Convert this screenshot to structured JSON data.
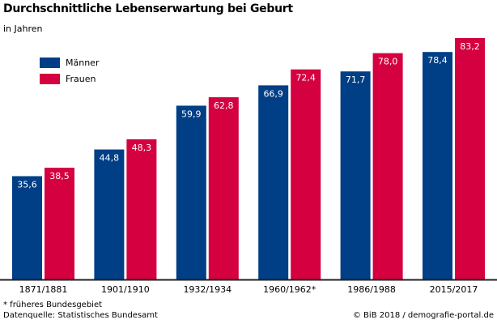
{
  "chart_data": {
    "type": "bar",
    "title": "Durchschnittliche Lebenserwartung bei Geburt",
    "subtitle": "in Jahren",
    "categories": [
      "1871/1881",
      "1901/1910",
      "1932/1934",
      "1960/1962*",
      "1986/1988",
      "2015/2017"
    ],
    "series": [
      {
        "name": "Männer",
        "color": "#003e86",
        "values": [
          35.6,
          44.8,
          59.9,
          66.9,
          71.7,
          78.4
        ],
        "labels": [
          "35,6",
          "44,8",
          "59,9",
          "66,9",
          "71,7",
          "78,4"
        ]
      },
      {
        "name": "Frauen",
        "color": "#d5003f",
        "values": [
          38.5,
          48.3,
          62.8,
          72.4,
          78.0,
          83.2
        ],
        "labels": [
          "38,5",
          "48,3",
          "62,8",
          "72,4",
          "78,0",
          "83,2"
        ]
      }
    ],
    "ylim": [
      0,
      83.2
    ],
    "grid": false,
    "legend_position": "top-left"
  },
  "footer": {
    "note": "* früheres Bundesgebiet",
    "source": "Datenquelle: Statistisches Bundesamt",
    "copyright": "© BiB 2018 / demografie-portal.de"
  }
}
